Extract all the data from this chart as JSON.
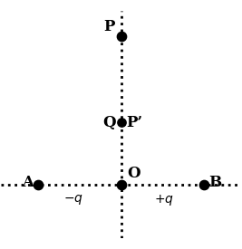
{
  "bg_color": "#ffffff",
  "line_color": "#000000",
  "dot_color": "#000000",
  "O": [
    0,
    0
  ],
  "A": [
    -1.0,
    0
  ],
  "B": [
    1.0,
    0
  ],
  "P": [
    0,
    1.8
  ],
  "QP": [
    0,
    0.75
  ],
  "xlim": [
    -1.45,
    1.45
  ],
  "ylim": [
    -0.65,
    2.1
  ],
  "dot_size_large": 55,
  "dot_size_small": 45,
  "line_width": 2.0,
  "font_size_large": 12,
  "font_size_small": 10
}
